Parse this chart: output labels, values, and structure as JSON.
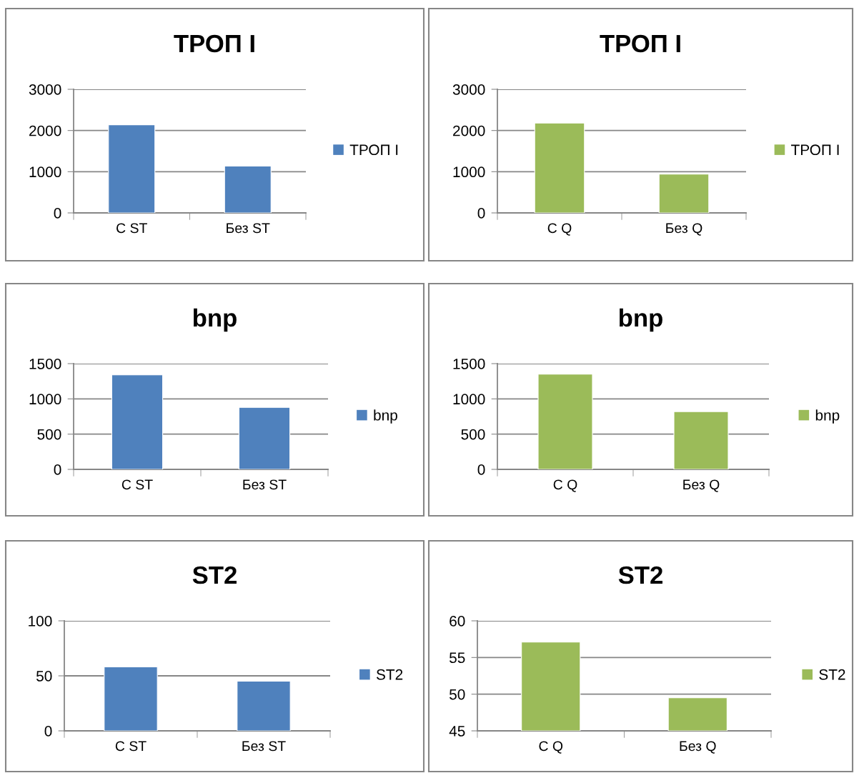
{
  "chart_data": [
    {
      "type": "bar",
      "title": "ТРОП I",
      "categories": [
        "С ST",
        "Без ST"
      ],
      "series": [
        {
          "name": "ТРОП I",
          "color": "#4f81bd",
          "values": [
            2140,
            1135
          ]
        }
      ],
      "ylim": [
        0,
        3000
      ],
      "yticks": [
        0,
        1000,
        2000,
        3000
      ],
      "grid": "y",
      "legend": "right"
    },
    {
      "type": "bar",
      "title": "ТРОП I",
      "categories": [
        "С Q",
        "Без Q"
      ],
      "series": [
        {
          "name": "ТРОП I",
          "color": "#9bbb59",
          "values": [
            2180,
            940
          ]
        }
      ],
      "ylim": [
        0,
        3000
      ],
      "yticks": [
        0,
        1000,
        2000,
        3000
      ],
      "grid": "y",
      "legend": "right"
    },
    {
      "type": "bar",
      "title": "bnp",
      "categories": [
        "С ST",
        "Без ST"
      ],
      "series": [
        {
          "name": "bnp",
          "color": "#4f81bd",
          "values": [
            1340,
            880
          ]
        }
      ],
      "ylim": [
        0,
        1500
      ],
      "yticks": [
        0,
        500,
        1000,
        1500
      ],
      "grid": "y",
      "legend": "right"
    },
    {
      "type": "bar",
      "title": "bnp",
      "categories": [
        "С Q",
        "Без Q"
      ],
      "series": [
        {
          "name": "bnp",
          "color": "#9bbb59",
          "values": [
            1350,
            820
          ]
        }
      ],
      "ylim": [
        0,
        1500
      ],
      "yticks": [
        0,
        500,
        1000,
        1500
      ],
      "grid": "y",
      "legend": "right"
    },
    {
      "type": "bar",
      "title": "ST2",
      "categories": [
        "С ST",
        "Без ST"
      ],
      "series": [
        {
          "name": "ST2",
          "color": "#4f81bd",
          "values": [
            58.2,
            45.1
          ]
        }
      ],
      "ylim": [
        0,
        100
      ],
      "yticks": [
        0,
        50,
        100
      ],
      "grid": "y",
      "legend": "right"
    },
    {
      "type": "bar",
      "title": "ST2",
      "categories": [
        "С Q",
        "Без Q"
      ],
      "series": [
        {
          "name": "ST2",
          "color": "#9bbb59",
          "values": [
            57.1,
            49.5
          ]
        }
      ],
      "ylim": [
        45,
        60
      ],
      "yticks": [
        45,
        50,
        55,
        60
      ],
      "grid": "y",
      "legend": "right"
    }
  ]
}
